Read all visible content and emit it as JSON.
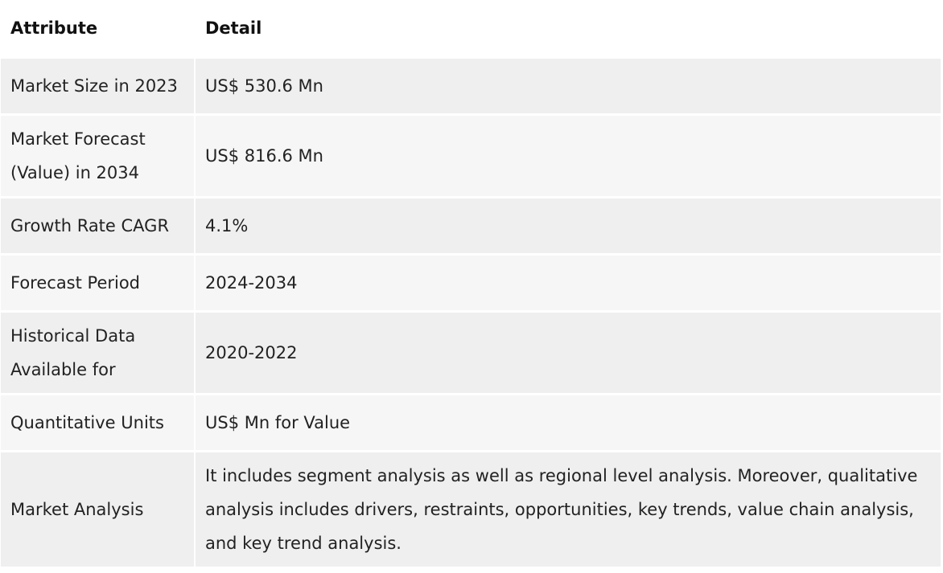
{
  "table": {
    "headers": [
      "Attribute",
      "Detail"
    ],
    "rows": [
      {
        "attribute": "Market Size in 2023",
        "detail": "US$ 530.6 Mn"
      },
      {
        "attribute": "Market Forecast (Value) in 2034",
        "detail": "US$ 816.6 Mn"
      },
      {
        "attribute": "Growth Rate CAGR",
        "detail": "4.1%"
      },
      {
        "attribute": "Forecast Period",
        "detail": "2024-2034"
      },
      {
        "attribute": "Historical Data Available for",
        "detail": "2020-2022"
      },
      {
        "attribute": "Quantitative Units",
        "detail": "US$ Mn for Value"
      },
      {
        "attribute": "Market Analysis",
        "detail": "It includes segment analysis as well as regional level analysis. Moreover, qualitative analysis includes drivers, restraints, opportunities, key trends, value chain analysis, and key trend analysis."
      }
    ]
  }
}
